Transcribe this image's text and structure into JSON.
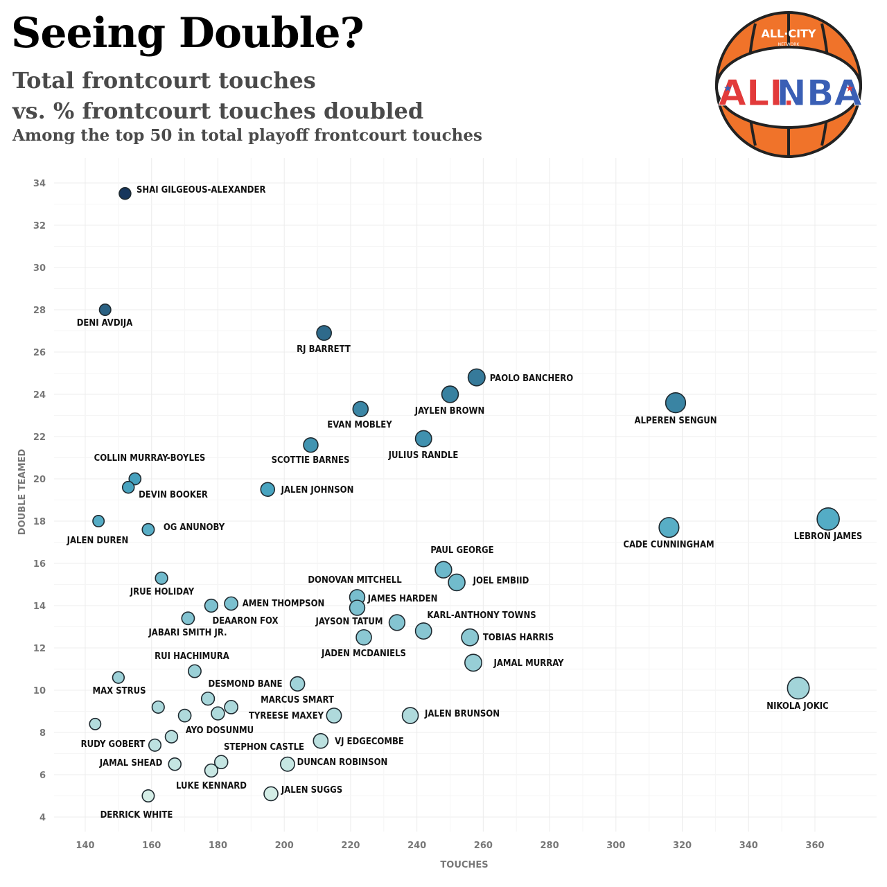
{
  "header": {
    "title": "Seeing Double?",
    "subtitle_line1": "Total frontcourt touches",
    "subtitle_line2": "vs. % frontcourt touches doubled",
    "subtitle_line3": "Among the top 50 in total playoff frontcourt touches"
  },
  "logo": {
    "top_text": "ALL·CITY",
    "small_text": "NETWORK",
    "main_left": "ALL",
    "main_right": "NBA",
    "colors": {
      "ball": "#f0732a",
      "seam": "#222222",
      "red": "#e23a3a",
      "blue": "#3a5fb5"
    }
  },
  "chart_data": {
    "type": "scatter",
    "xlabel": "TOUCHES",
    "ylabel": "DOUBLE TEAMED",
    "xlim": [
      130,
      378
    ],
    "ylim": [
      3.5,
      35.2
    ],
    "xticks": [
      140,
      160,
      180,
      200,
      220,
      240,
      260,
      280,
      300,
      320,
      340,
      360
    ],
    "yticks": [
      4,
      6,
      8,
      10,
      12,
      14,
      16,
      18,
      20,
      22,
      24,
      26,
      28,
      30,
      32,
      34
    ],
    "grid": true,
    "color_scale": {
      "low": "#d4ede6",
      "mid": "#49a6c2",
      "high": "#17365c"
    },
    "points": [
      {
        "name": "SHAI GILGEOUS-ALEXANDER",
        "x": 152,
        "y": 33.5
      },
      {
        "name": "DENI AVDIJA",
        "x": 146,
        "y": 28.0
      },
      {
        "name": "RJ BARRETT",
        "x": 212,
        "y": 26.9
      },
      {
        "name": "PAOLO BANCHERO",
        "x": 258,
        "y": 24.8
      },
      {
        "name": "JAYLEN BROWN",
        "x": 250,
        "y": 24.0
      },
      {
        "name": "ALPEREN SENGUN",
        "x": 318,
        "y": 23.6
      },
      {
        "name": "EVAN MOBLEY",
        "x": 223,
        "y": 23.3
      },
      {
        "name": "JULIUS RANDLE",
        "x": 242,
        "y": 21.9
      },
      {
        "name": "SCOTTIE BARNES",
        "x": 208,
        "y": 21.6
      },
      {
        "name": "COLLIN MURRAY-BOYLES",
        "x": 155,
        "y": 20.0
      },
      {
        "name": "DEVIN BOOKER",
        "x": 153,
        "y": 19.6
      },
      {
        "name": "JALEN JOHNSON",
        "x": 195,
        "y": 19.5
      },
      {
        "name": "LEBRON JAMES",
        "x": 364,
        "y": 18.1
      },
      {
        "name": "JALEN DUREN",
        "x": 144,
        "y": 18.0
      },
      {
        "name": "CADE CUNNINGHAM",
        "x": 316,
        "y": 17.7
      },
      {
        "name": "OG ANUNOBY",
        "x": 159,
        "y": 17.6
      },
      {
        "name": "PAUL GEORGE",
        "x": 248,
        "y": 15.7
      },
      {
        "name": "JOEL EMBIID",
        "x": 252,
        "y": 15.1
      },
      {
        "name": "JRUE HOLIDAY",
        "x": 163,
        "y": 15.3
      },
      {
        "name": "DONOVAN MITCHELL",
        "x": 222,
        "y": 14.4
      },
      {
        "name": "JAMES HARDEN",
        "x": 222,
        "y": 13.9
      },
      {
        "name": "AMEN THOMPSON",
        "x": 184,
        "y": 14.1
      },
      {
        "name": "DEAARON FOX",
        "x": 178,
        "y": 14.0
      },
      {
        "name": "JABARI SMITH JR.",
        "x": 171,
        "y": 13.4
      },
      {
        "name": "JAYSON TATUM",
        "x": 234,
        "y": 13.2
      },
      {
        "name": "KARL-ANTHONY TOWNS",
        "x": 242,
        "y": 12.8
      },
      {
        "name": "TOBIAS HARRIS",
        "x": 256,
        "y": 12.5
      },
      {
        "name": "JADEN MCDANIELS",
        "x": 224,
        "y": 12.5
      },
      {
        "name": "JAMAL MURRAY",
        "x": 257,
        "y": 11.3
      },
      {
        "name": "RUI HACHIMURA",
        "x": 173,
        "y": 10.9
      },
      {
        "name": "MAX STRUS",
        "x": 150,
        "y": 10.6
      },
      {
        "name": "DESMOND BANE",
        "x": 204,
        "y": 10.3
      },
      {
        "name": "NIKOLA JOKIC",
        "x": 355,
        "y": 10.1
      },
      {
        "name": "MARCUS SMART",
        "x": 184,
        "y": 9.2
      },
      {
        "name": "",
        "x": 177,
        "y": 9.6
      },
      {
        "name": "",
        "x": 162,
        "y": 9.2
      },
      {
        "name": "TYREESE MAXEY",
        "x": 215,
        "y": 8.8
      },
      {
        "name": "JALEN BRUNSON",
        "x": 238,
        "y": 8.8
      },
      {
        "name": "",
        "x": 180,
        "y": 8.9
      },
      {
        "name": "",
        "x": 170,
        "y": 8.8
      },
      {
        "name": "",
        "x": 143,
        "y": 8.4
      },
      {
        "name": "AYO DOSUNMU",
        "x": 166,
        "y": 7.8
      },
      {
        "name": "VJ EDGECOMBE",
        "x": 211,
        "y": 7.6
      },
      {
        "name": "RUDY GOBERT",
        "x": 161,
        "y": 7.4
      },
      {
        "name": "STEPHON CASTLE",
        "x": 181,
        "y": 6.6
      },
      {
        "name": "JAMAL SHEAD",
        "x": 167,
        "y": 6.5
      },
      {
        "name": "DUNCAN ROBINSON",
        "x": 201,
        "y": 6.5
      },
      {
        "name": "LUKE KENNARD",
        "x": 178,
        "y": 6.2
      },
      {
        "name": "JALEN SUGGS",
        "x": 196,
        "y": 5.1
      },
      {
        "name": "DERRICK WHITE",
        "x": 159,
        "y": 5.0
      }
    ]
  }
}
